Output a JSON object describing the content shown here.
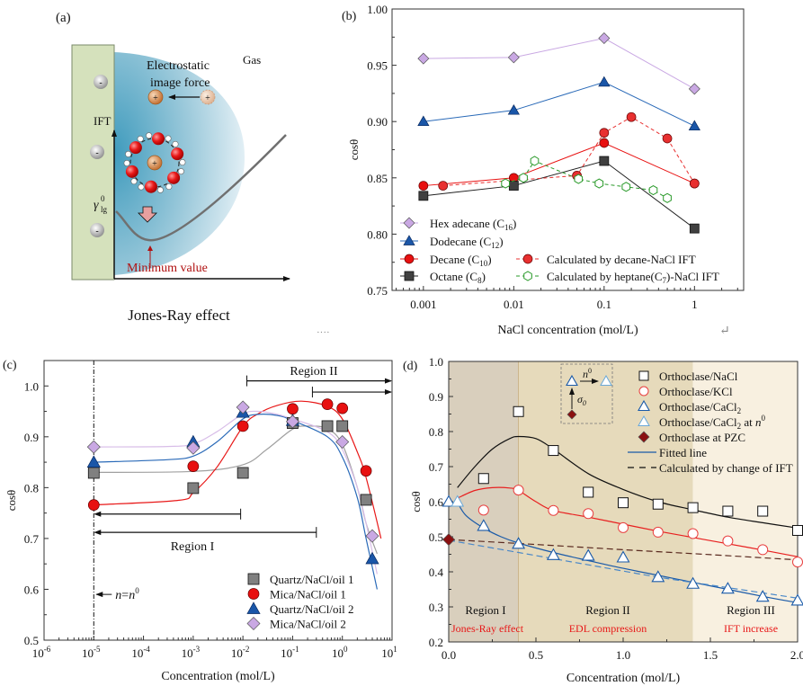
{
  "figure": {
    "panels": [
      "(a)",
      "(b)",
      "(c)",
      "(d)"
    ],
    "ellipsis": "····",
    "return_glyph": "↵"
  },
  "panel_a": {
    "label": "(a)",
    "caption": "Jones-Ray effect",
    "gas_label": "Gas",
    "force_label_1": "Electrostatic",
    "force_label_2": "image force",
    "y_axis_label": "IFT",
    "gamma_label": "γ",
    "gamma_sup": "0",
    "gamma_sub": "lg",
    "minimum_label": "Minimum value",
    "neg_ion": "-",
    "pos_ion": "+",
    "colors": {
      "surface": "#d5e1bc",
      "halo": "#5aaac4",
      "minimum": "#b01010",
      "oxygen": "#e81818",
      "cation": "#d98a4a"
    }
  },
  "chart_data": [
    {
      "id": "b",
      "type": "line",
      "title": "",
      "xlabel": "NaCl concentration (mol/L)",
      "ylabel": "cosθ",
      "xscale": "log",
      "xlim": [
        0.00045,
        3.5
      ],
      "ylim": [
        0.75,
        1.0
      ],
      "xticks": [
        0.001,
        0.01,
        0.1,
        1
      ],
      "xtick_labels": [
        "0.001",
        "0.01",
        "0.1",
        "1"
      ],
      "yticks": [
        0.75,
        0.8,
        0.85,
        0.9,
        0.95,
        1.0
      ],
      "ytick_labels": [
        "0.75",
        "0.80",
        "0.85",
        "0.90",
        "0.95",
        "1.00"
      ],
      "legend_position": "bottom-left",
      "series": [
        {
          "name": "Hexadecane (C16)",
          "label": "Hex adecane (C",
          "sub": "16",
          "marker": "diamond",
          "color": "#c9a8e3",
          "line": "#c9a8e3",
          "dashed": false,
          "filled": true,
          "x": [
            0.001,
            0.01,
            0.1,
            1
          ],
          "y": [
            0.956,
            0.957,
            0.974,
            0.929
          ]
        },
        {
          "name": "Dodecane (C12)",
          "label": "Dodecane (C",
          "sub": "12",
          "marker": "triangle",
          "color": "#1a56a8",
          "line": "#2a6ab8",
          "dashed": false,
          "filled": true,
          "x": [
            0.001,
            0.01,
            0.1,
            1
          ],
          "y": [
            0.9,
            0.91,
            0.935,
            0.896
          ]
        },
        {
          "name": "Decane (C10)",
          "label": "Decane (C",
          "sub": "10",
          "marker": "circle",
          "color": "#e81010",
          "line": "#e81010",
          "dashed": false,
          "filled": true,
          "x": [
            0.001,
            0.01,
            0.1,
            1
          ],
          "y": [
            0.843,
            0.85,
            0.881,
            0.845
          ]
        },
        {
          "name": "Octane (C8)",
          "label": "Octane (C",
          "sub": "8",
          "marker": "square",
          "color": "#404040",
          "line": "#202020",
          "dashed": false,
          "filled": true,
          "x": [
            0.001,
            0.01,
            0.1,
            1
          ],
          "y": [
            0.834,
            0.843,
            0.865,
            0.805
          ]
        },
        {
          "name": "Calculated by decane-NaCl IFT",
          "label": "Calculated by decane-NaCl IFT",
          "sub": "",
          "marker": "circle",
          "color": "#e83030",
          "line": "#e83030",
          "dashed": true,
          "filled": false,
          "x": [
            0.00165,
            0.05,
            0.1,
            0.2,
            0.5,
            1
          ],
          "y": [
            0.843,
            0.852,
            0.89,
            0.904,
            0.885,
            0.845
          ]
        },
        {
          "name": "Calculated by heptane(C7)-NaCl IFT",
          "label": "Calculated by heptane(C",
          "sub": "7",
          "label_tail": ")-NaCl IFT",
          "marker": "hexagon",
          "color": "#2a9a2a",
          "line": "#2a9a2a",
          "dashed": true,
          "filled": false,
          "x": [
            0.0081,
            0.0128,
            0.017,
            0.052,
            0.088,
            0.175,
            0.35,
            0.5
          ],
          "y": [
            0.845,
            0.85,
            0.865,
            0.849,
            0.845,
            0.842,
            0.839,
            0.832
          ]
        }
      ]
    },
    {
      "id": "c",
      "type": "scatter",
      "title": "",
      "xlabel": "Concentration (mol/L)",
      "ylabel": "cosθ",
      "xscale": "log",
      "xlim": [
        1e-06,
        10
      ],
      "ylim": [
        0.5,
        1.05
      ],
      "xtick_exponents": [
        -6,
        -5,
        -4,
        -3,
        -2,
        -1,
        0,
        1
      ],
      "xtick_base": "10",
      "yticks": [
        0.5,
        0.6,
        0.7,
        0.8,
        0.9,
        1.0
      ],
      "ytick_labels": [
        "0.5",
        "0.6",
        "0.7",
        "0.8",
        "0.9",
        "1.0"
      ],
      "legend_position": "bottom-right",
      "vline": {
        "x": 1e-05,
        "label_italic": "n",
        "label_mid": "=",
        "label_italic2": "n",
        "label_sup": "0"
      },
      "region_labels": {
        "region1": "Region I",
        "region2": "Region II"
      },
      "region1_arrows": [
        {
          "from": 1e-05,
          "to": 0.009,
          "y": 0.748
        },
        {
          "from": 1e-05,
          "to": 0.3,
          "y": 0.712
        }
      ],
      "region2_arrows": [
        {
          "from": 0.012,
          "to": 10,
          "y": 1.01
        },
        {
          "from": 0.25,
          "to": 10,
          "y": 0.988
        }
      ],
      "series": [
        {
          "name": "Quartz/NaCl/oil 1",
          "marker": "square",
          "color": "#808080",
          "x": [
            1e-05,
            0.001,
            0.01,
            0.1,
            0.5,
            1,
            3
          ],
          "y": [
            0.829,
            0.799,
            0.829,
            0.927,
            0.921,
            0.921,
            0.776
          ],
          "fit": {
            "color": "#a0a0a0",
            "x": [
              1e-05,
              0.001,
              0.01,
              0.03,
              0.1,
              0.2,
              0.5,
              1,
              2,
              3,
              5
            ],
            "y": [
              0.83,
              0.832,
              0.845,
              0.875,
              0.915,
              0.921,
              0.916,
              0.885,
              0.8,
              0.73,
              0.67
            ]
          }
        },
        {
          "name": "Mica/NaCl/oil 1",
          "marker": "circle",
          "color": "#e81010",
          "x": [
            1e-05,
            0.001,
            0.01,
            0.1,
            0.5,
            1,
            3
          ],
          "y": [
            0.766,
            0.842,
            0.921,
            0.955,
            0.964,
            0.956,
            0.833
          ],
          "fit": {
            "color": "#e81818",
            "x": [
              1e-05,
              0.0005,
              0.001,
              0.003,
              0.01,
              0.02,
              0.05,
              0.15,
              0.5,
              1,
              2,
              3,
              6
            ],
            "y": [
              0.766,
              0.775,
              0.79,
              0.84,
              0.92,
              0.945,
              0.962,
              0.97,
              0.96,
              0.935,
              0.87,
              0.82,
              0.7
            ]
          }
        },
        {
          "name": "Quartz/NaCl/oil 2",
          "marker": "triangle",
          "color": "#1a56a8",
          "x": [
            1e-05,
            0.001,
            0.01,
            0.1,
            4
          ],
          "y": [
            0.85,
            0.89,
            0.948,
            0.932,
            0.66
          ],
          "fit": {
            "color": "#2a6ab8",
            "x": [
              1e-05,
              0.0003,
              0.001,
              0.003,
              0.01,
              0.02,
              0.05,
              0.1,
              0.5,
              1,
              2,
              3,
              5
            ],
            "y": [
              0.85,
              0.855,
              0.862,
              0.89,
              0.935,
              0.944,
              0.942,
              0.932,
              0.9,
              0.86,
              0.78,
              0.7,
              0.6
            ]
          }
        },
        {
          "name": "Mica/NaCl/oil 2",
          "marker": "diamond",
          "color": "#c9a8e3",
          "x": [
            1e-05,
            0.001,
            0.01,
            0.1,
            1,
            4
          ],
          "y": [
            0.88,
            0.878,
            0.958,
            0.93,
            0.89,
            0.705
          ],
          "fit": {
            "color": "#d8bde8",
            "x": [
              1e-05,
              0.0003,
              0.001,
              0.003,
              0.01,
              0.02,
              0.05,
              0.1,
              0.5,
              1,
              2,
              3,
              5
            ],
            "y": [
              0.88,
              0.881,
              0.886,
              0.91,
              0.945,
              0.95,
              0.944,
              0.935,
              0.91,
              0.875,
              0.8,
              0.73,
              0.63
            ]
          }
        }
      ]
    },
    {
      "id": "d",
      "type": "scatter",
      "title": "",
      "xlabel": "Concentration (mol/L)",
      "ylabel": "cosθ",
      "xscale": "linear",
      "xlim": [
        0,
        2.0
      ],
      "ylim": [
        0.2,
        1.0
      ],
      "xticks": [
        0.0,
        0.5,
        1.0,
        1.5,
        2.0
      ],
      "xtick_labels": [
        "0.0",
        "0.5",
        "1.0",
        "1.5",
        "2.0"
      ],
      "yticks": [
        0.2,
        0.3,
        0.4,
        0.5,
        0.6,
        0.7,
        0.8,
        0.9,
        1.0
      ],
      "ytick_labels": [
        "0.2",
        "0.3",
        "0.4",
        "0.5",
        "0.6",
        "0.7",
        "0.8",
        "0.9",
        "1.0"
      ],
      "legend_position": "top-right",
      "regions": [
        {
          "from": 0,
          "to": 0.4,
          "color": "#d9cfbd",
          "name": "Region I",
          "desc": "Jones-Ray effect"
        },
        {
          "from": 0.4,
          "to": 1.4,
          "color": "#e6dabb",
          "name": "Region II",
          "desc": "EDL compression"
        },
        {
          "from": 1.4,
          "to": 2.0,
          "color": "#f8f0e0",
          "name": "Region III",
          "desc": "IFT increase"
        }
      ],
      "inset": {
        "label_n": "n",
        "label_n_sup": "0",
        "label_sigma": "σ",
        "label_sigma_sub": "0"
      },
      "series": [
        {
          "name": "Orthoclase/NaCl",
          "marker": "open-square",
          "color": "#111111",
          "x": [
            0.2,
            0.4,
            0.6,
            0.8,
            1.0,
            1.2,
            1.4,
            1.6,
            1.8,
            2.0
          ],
          "y": [
            0.666,
            0.857,
            0.746,
            0.627,
            0.597,
            0.593,
            0.583,
            0.573,
            0.573,
            0.518
          ]
        },
        {
          "name": "Orthoclase/KCl",
          "marker": "open-circle",
          "color": "#e84040",
          "x": [
            0.2,
            0.4,
            0.6,
            0.8,
            1.0,
            1.2,
            1.4,
            1.6,
            1.8,
            2.0
          ],
          "y": [
            0.576,
            0.633,
            0.575,
            0.566,
            0.526,
            0.513,
            0.509,
            0.488,
            0.463,
            0.428
          ]
        },
        {
          "name": "Orthoclase/CaCl2",
          "name_main": "Orthoclase/CaCl",
          "name_sub": "2",
          "marker": "open-triangle",
          "color": "#1a5aa8",
          "x": [
            0.0,
            0.2,
            0.4,
            0.6,
            0.8,
            1.0,
            1.2,
            1.4,
            1.6,
            1.8,
            2.0
          ],
          "y": [
            0.6,
            0.531,
            0.48,
            0.448,
            0.446,
            0.441,
            0.385,
            0.366,
            0.352,
            0.329,
            0.318
          ]
        },
        {
          "name": "Orthoclase/CaCl2 at n0",
          "name_main": "Orthoclase/CaCl",
          "name_sub": "2",
          "name_tail": " at ",
          "name_it": "n",
          "name_sup": "0",
          "marker": "open-triangle-light",
          "color": "#6aa8d8",
          "x": [
            0.05
          ],
          "y": [
            0.6
          ]
        },
        {
          "name": "Orthoclase at PZC",
          "marker": "diamond",
          "color": "#8a1010",
          "x": [
            0.0
          ],
          "y": [
            0.492
          ]
        },
        {
          "name": "Fitted line",
          "kind": "legend-line",
          "color": "#1a5aa8",
          "dashed": false
        },
        {
          "name": "Calculated by change of IFT",
          "kind": "legend-line",
          "color": "#111111",
          "dashed": true
        }
      ],
      "fits": [
        {
          "name": "NaCl fit",
          "color": "#111111",
          "dashed": false,
          "x": [
            0.05,
            0.15,
            0.25,
            0.35,
            0.4,
            0.5,
            0.6,
            0.8,
            1.0,
            1.2,
            1.4,
            1.6,
            1.8,
            2.0
          ],
          "y": [
            0.64,
            0.7,
            0.75,
            0.78,
            0.786,
            0.78,
            0.75,
            0.68,
            0.635,
            0.6,
            0.577,
            0.556,
            0.54,
            0.525
          ]
        },
        {
          "name": "KCl fit",
          "color": "#e82020",
          "dashed": false,
          "x": [
            0.05,
            0.15,
            0.25,
            0.35,
            0.4,
            0.5,
            0.6,
            0.8,
            1.0,
            1.2,
            1.4,
            1.6,
            1.8,
            2.0
          ],
          "y": [
            0.61,
            0.632,
            0.64,
            0.639,
            0.632,
            0.6,
            0.575,
            0.556,
            0.536,
            0.516,
            0.498,
            0.48,
            0.462,
            0.443
          ]
        },
        {
          "name": "CaCl2 fit",
          "color": "#1a5aa8",
          "dashed": false,
          "x": [
            0.05,
            0.1,
            0.2,
            0.3,
            0.4,
            0.6,
            0.8,
            1.0,
            1.2,
            1.4,
            1.6,
            1.8,
            2.0
          ],
          "y": [
            0.598,
            0.56,
            0.525,
            0.5,
            0.482,
            0.455,
            0.432,
            0.41,
            0.39,
            0.37,
            0.35,
            0.33,
            0.312
          ]
        },
        {
          "name": "CaCl2 IFT calc",
          "color": "#4a88c8",
          "dashed": true,
          "x": [
            0.0,
            0.4,
            0.8,
            1.2,
            1.6,
            2.0
          ],
          "y": [
            0.49,
            0.455,
            0.42,
            0.385,
            0.355,
            0.325
          ]
        },
        {
          "name": "IFT calc",
          "color": "#5a2a20",
          "dashed": true,
          "x": [
            0.0,
            0.5,
            1.0,
            1.5,
            2.0
          ],
          "y": [
            0.492,
            0.478,
            0.463,
            0.449,
            0.434
          ]
        }
      ]
    }
  ]
}
